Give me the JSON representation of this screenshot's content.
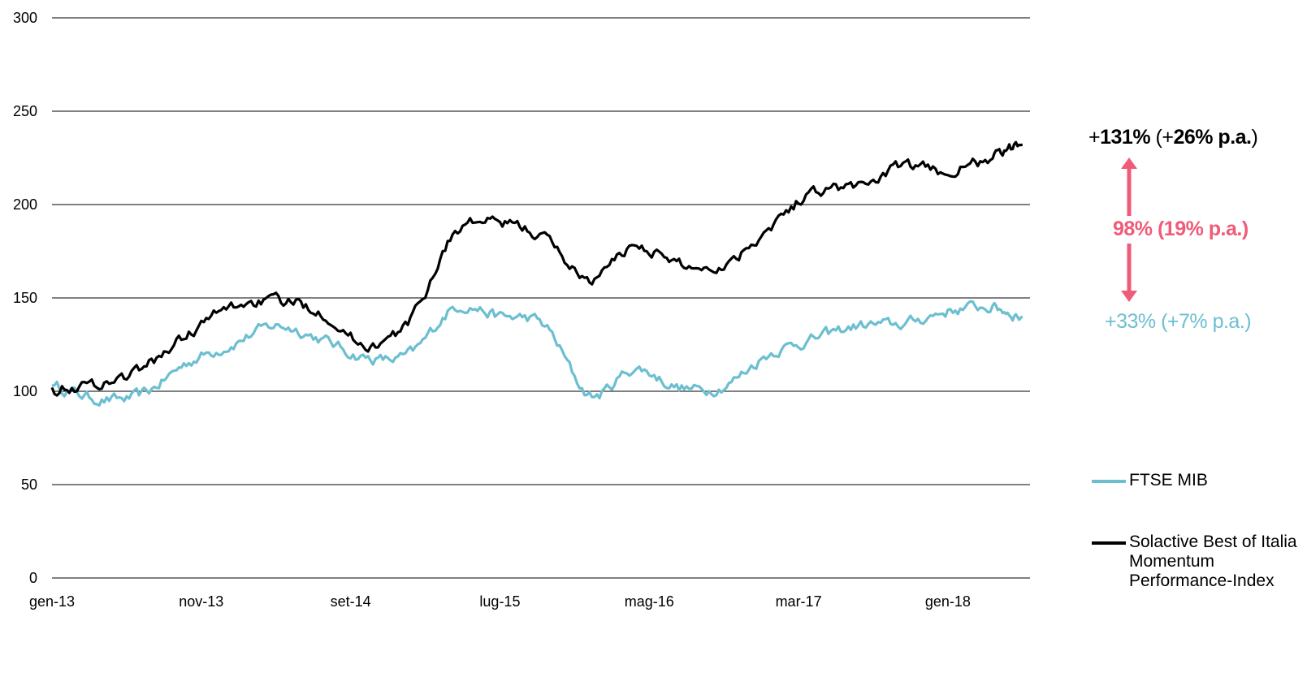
{
  "chart_data": {
    "type": "line",
    "title": "",
    "xlabel": "",
    "ylabel": "",
    "ylim": [
      0,
      300
    ],
    "yticks": [
      "0",
      "50",
      "100",
      "150",
      "200",
      "250",
      "300"
    ],
    "xticks": [
      "gen-13",
      "nov-13",
      "set-14",
      "lug-15",
      "mag-16",
      "mar-17",
      "gen-18"
    ],
    "grid": "horizontal",
    "legend_position": "right",
    "x_months": [
      "2013-01",
      "2013-04",
      "2013-07",
      "2013-10",
      "2014-01",
      "2014-04",
      "2014-07",
      "2014-10",
      "2015-01",
      "2015-04",
      "2015-07",
      "2015-10",
      "2016-01",
      "2016-04",
      "2016-07",
      "2016-10",
      "2017-01",
      "2017-04",
      "2017-07",
      "2017-10",
      "2018-01",
      "2018-04",
      "2018-06"
    ],
    "series": [
      {
        "name": "FTSE MIB",
        "color": "#6cbfd0",
        "values": [
          103,
          96,
          98,
          115,
          125,
          135,
          128,
          118,
          120,
          145,
          140,
          135,
          98,
          112,
          102,
          103,
          120,
          128,
          135,
          136,
          143,
          145,
          140
        ]
      },
      {
        "name": "Solactive Best of Italia Momentum Performance-Index",
        "color": "#000000",
        "values": [
          102,
          104,
          112,
          130,
          145,
          148,
          143,
          125,
          138,
          185,
          190,
          182,
          160,
          178,
          168,
          168,
          188,
          207,
          210,
          220,
          218,
          225,
          232
        ]
      }
    ]
  },
  "annotations": {
    "top_prefix": "+",
    "top_value": "131%",
    "top_mid": " (+",
    "top_pa": "26% p.a.",
    "top_close": ")",
    "middle": "98% (19% p.a.)",
    "bottom": "+33% (+7% p.a.)",
    "arrow_color": "#ef5b78"
  },
  "legend": {
    "ftse_label": "FTSE MIB",
    "solactive_label": "Solactive Best of Italia Momentum Performance-Index"
  }
}
